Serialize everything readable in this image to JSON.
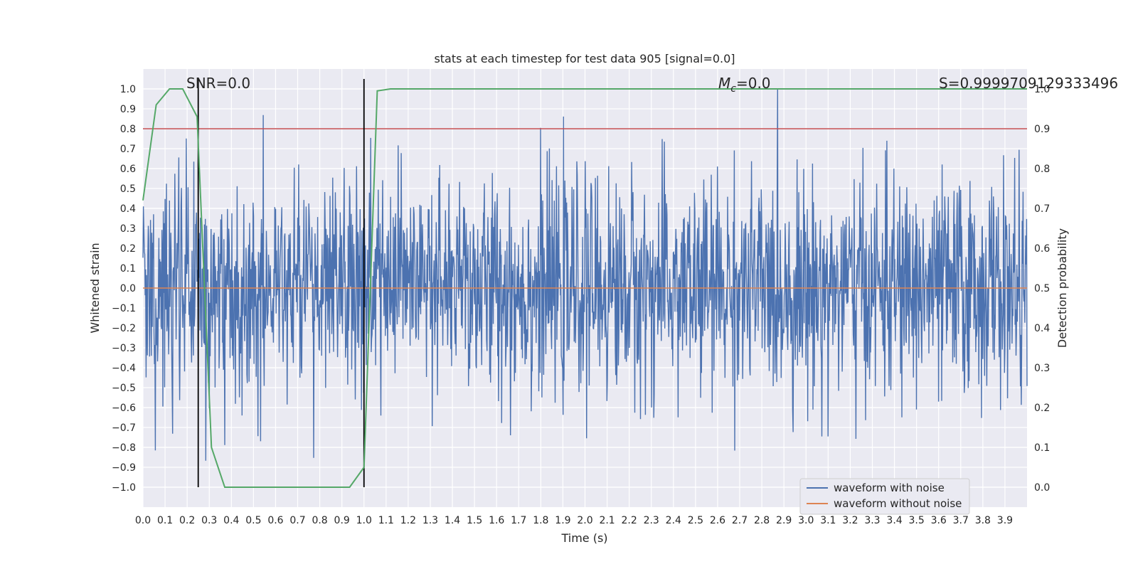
{
  "chart_data": {
    "type": "line",
    "title": "stats at each timestep for test data 905 [signal=0.0]",
    "xlabel": "Time (s)",
    "ylabel": "Whitened strain",
    "ylabel_right": "Detection probability",
    "xlim": [
      0,
      4.0
    ],
    "ylim": [
      -1.1,
      1.1
    ],
    "ylim_right": [
      -0.05,
      1.05
    ],
    "x_ticks": [
      0.0,
      0.1,
      0.2,
      0.3,
      0.4,
      0.5,
      0.6,
      0.7,
      0.8,
      0.9,
      1.0,
      1.1,
      1.2,
      1.3,
      1.4,
      1.5,
      1.6,
      1.7,
      1.8,
      1.9,
      2.0,
      2.1,
      2.2,
      2.3,
      2.4,
      2.5,
      2.6,
      2.7,
      2.8,
      2.9,
      3.0,
      3.1,
      3.2,
      3.3,
      3.4,
      3.5,
      3.6,
      3.7,
      3.8,
      3.9
    ],
    "y_ticks": [
      1.0,
      0.9,
      0.8,
      0.7,
      0.6,
      0.5,
      0.4,
      0.3,
      0.2,
      0.1,
      0.0,
      -0.1,
      -0.2,
      -0.3,
      -0.4,
      -0.5,
      -0.6,
      -0.7,
      -0.8,
      -0.9,
      -1.0
    ],
    "y_ticks_right": [
      1.0,
      0.9,
      0.8,
      0.7,
      0.6,
      0.5,
      0.4,
      0.3,
      0.2,
      0.1,
      0.0
    ],
    "grid": true,
    "legend_position": "bottom-right",
    "series": [
      {
        "name": "waveform with noise",
        "color": "#4c72b0",
        "style": "noise",
        "amplitude_typical": 0.3,
        "amplitude_peak": 1.0
      },
      {
        "name": "waveform without noise",
        "color": "#dd8452",
        "values_constant": 0.0
      }
    ],
    "probability": {
      "color": "#55a868",
      "x": [
        0.0,
        0.06,
        0.12,
        0.18,
        0.245,
        0.31,
        0.37,
        0.43,
        0.5,
        0.56,
        0.62,
        0.68,
        0.75,
        0.81,
        0.87,
        0.935,
        1.0,
        1.06,
        1.12,
        1.2,
        1.4,
        2.0,
        3.0,
        4.0
      ],
      "y": [
        0.72,
        0.96,
        1.0,
        1.0,
        0.93,
        0.1,
        0.0,
        0.0,
        0.0,
        0.0,
        0.0,
        0.0,
        0.0,
        0.0,
        0.0,
        0.0,
        0.05,
        0.995,
        1.0,
        1.0,
        1.0,
        1.0,
        1.0,
        1.0
      ]
    },
    "threshold": {
      "value": 0.9,
      "color": "#c44e52"
    },
    "vlines": [
      0.25,
      1.0
    ],
    "annotations": {
      "snr": "SNR=0.0",
      "mc_symbol": "M",
      "mc_sub": "c",
      "mc_value": "=0.0",
      "s": "S=0.9999709129333496"
    }
  }
}
